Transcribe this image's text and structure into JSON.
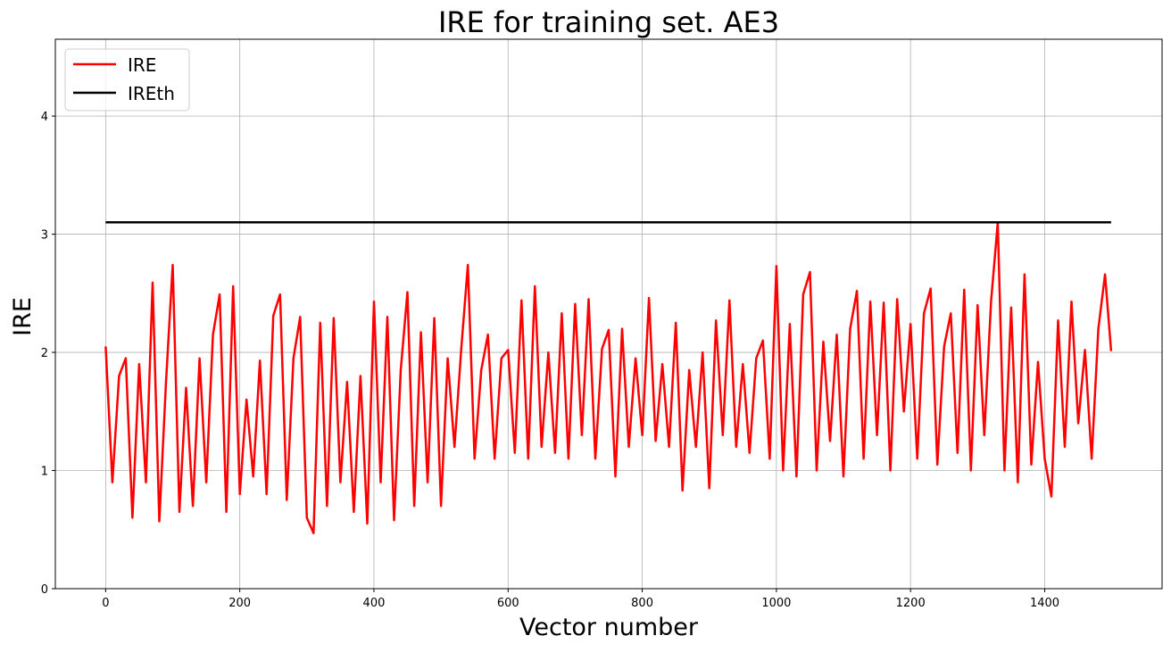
{
  "chart_data": {
    "type": "line",
    "title": "IRE for training set. AE3",
    "xlabel": "Vector number",
    "ylabel": "IRE",
    "xlim": [
      -75,
      1575
    ],
    "ylim": [
      0,
      4.65
    ],
    "xticks": [
      0,
      200,
      400,
      600,
      800,
      1000,
      1200,
      1400
    ],
    "yticks": [
      0,
      1,
      2,
      3,
      4
    ],
    "grid": true,
    "legend": "top-left",
    "series": [
      {
        "name": "IRE",
        "color": "#ff0000",
        "x": [
          0,
          10,
          20,
          30,
          40,
          50,
          60,
          70,
          80,
          90,
          100,
          110,
          120,
          130,
          140,
          150,
          160,
          170,
          180,
          190,
          200,
          210,
          220,
          230,
          240,
          250,
          260,
          270,
          280,
          290,
          300,
          310,
          320,
          330,
          340,
          350,
          360,
          370,
          380,
          390,
          400,
          410,
          420,
          430,
          440,
          450,
          460,
          470,
          480,
          490,
          500,
          510,
          520,
          530,
          540,
          550,
          560,
          570,
          580,
          590,
          600,
          610,
          620,
          630,
          640,
          650,
          660,
          670,
          680,
          690,
          700,
          710,
          720,
          730,
          740,
          750,
          760,
          770,
          780,
          790,
          800,
          810,
          820,
          830,
          840,
          850,
          860,
          870,
          880,
          890,
          900,
          910,
          920,
          930,
          940,
          950,
          960,
          970,
          980,
          990,
          1000,
          1010,
          1020,
          1030,
          1040,
          1050,
          1060,
          1070,
          1080,
          1090,
          1100,
          1110,
          1120,
          1130,
          1140,
          1150,
          1160,
          1170,
          1180,
          1190,
          1200,
          1210,
          1220,
          1230,
          1240,
          1250,
          1260,
          1270,
          1280,
          1290,
          1300,
          1310,
          1320,
          1330,
          1340,
          1350,
          1360,
          1370,
          1380,
          1390,
          1400,
          1410,
          1420,
          1430,
          1440,
          1450,
          1460,
          1470,
          1480,
          1490,
          1499
        ],
        "values": [
          2.05,
          0.9,
          1.8,
          1.95,
          0.6,
          1.9,
          0.9,
          2.59,
          0.57,
          1.75,
          2.74,
          0.65,
          1.7,
          0.7,
          1.95,
          0.9,
          2.15,
          2.49,
          0.65,
          2.56,
          0.8,
          1.6,
          0.95,
          1.93,
          0.8,
          2.31,
          2.49,
          0.75,
          1.95,
          2.3,
          0.6,
          0.47,
          2.25,
          0.7,
          2.29,
          0.9,
          1.75,
          0.65,
          1.8,
          0.55,
          2.43,
          0.9,
          2.3,
          0.58,
          1.85,
          2.51,
          0.7,
          2.17,
          0.9,
          2.29,
          0.7,
          1.95,
          1.2,
          2.02,
          2.74,
          1.1,
          1.85,
          2.15,
          1.1,
          1.95,
          2.02,
          1.15,
          2.44,
          1.1,
          2.56,
          1.2,
          2.0,
          1.15,
          2.33,
          1.1,
          2.41,
          1.3,
          2.45,
          1.1,
          2.03,
          2.19,
          0.95,
          2.2,
          1.2,
          1.95,
          1.3,
          2.46,
          1.25,
          1.9,
          1.2,
          2.25,
          0.83,
          1.85,
          1.2,
          2.0,
          0.85,
          2.27,
          1.3,
          2.44,
          1.2,
          1.9,
          1.15,
          1.95,
          2.1,
          1.1,
          2.73,
          1.0,
          2.24,
          0.95,
          2.49,
          2.68,
          1.0,
          2.09,
          1.25,
          2.15,
          0.95,
          2.2,
          2.52,
          1.1,
          2.43,
          1.3,
          2.42,
          1.0,
          2.45,
          1.5,
          2.24,
          1.1,
          2.33,
          2.54,
          1.05,
          2.05,
          2.33,
          1.15,
          2.53,
          1.0,
          2.4,
          1.3,
          2.43,
          3.1,
          1.0,
          2.38,
          0.9,
          2.66,
          1.05,
          1.92,
          1.1,
          0.78,
          2.27,
          1.2,
          2.43,
          1.4,
          2.02,
          1.1,
          2.2,
          2.66,
          2.01
        ]
      },
      {
        "name": "IREth",
        "color": "#000000",
        "x": [
          0,
          1499
        ],
        "values": [
          3.1,
          3.1
        ]
      }
    ]
  }
}
